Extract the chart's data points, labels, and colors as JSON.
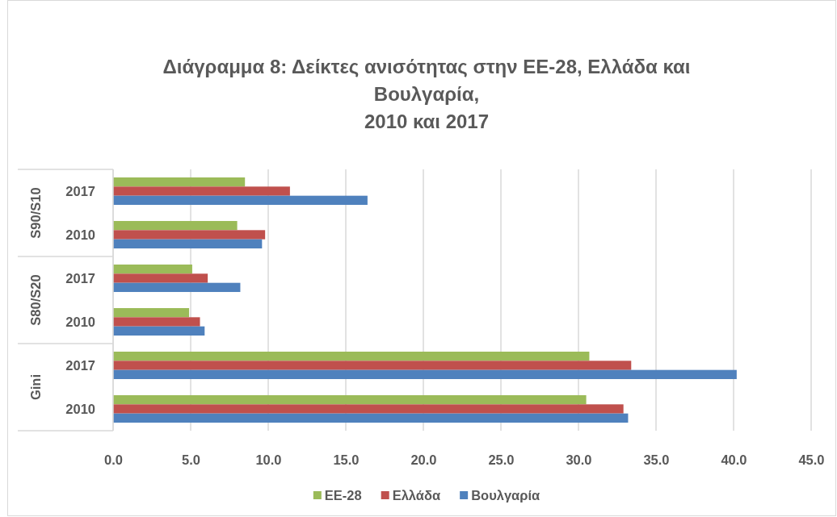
{
  "chart_data": {
    "type": "bar",
    "orientation": "horizontal",
    "title": "Διάγραμμα 8: Δείκτες ανισότητας στην ΕΕ-28, Ελλάδα και Βουλγαρία,\n2010 και 2017",
    "categories": [
      "2017",
      "2010",
      "2017",
      "2010",
      "2017",
      "2010"
    ],
    "annotations": [
      "S90/S10",
      "S80/S20",
      "Gini"
    ],
    "series": [
      {
        "name": "ΕΕ-28",
        "color": "#9bbb59",
        "values": [
          8.5,
          8.0,
          5.1,
          4.9,
          30.7,
          30.5
        ]
      },
      {
        "name": "Ελλάδα",
        "color": "#c0504d",
        "values": [
          11.4,
          9.8,
          6.1,
          5.6,
          33.4,
          32.9
        ]
      },
      {
        "name": "Βουλγαρία",
        "color": "#4f81bd",
        "values": [
          16.4,
          9.6,
          8.2,
          5.9,
          40.2,
          33.2
        ]
      }
    ],
    "xlim": [
      0,
      45
    ],
    "xticks": [
      {
        "value": 0,
        "label": "0.0"
      },
      {
        "value": 5,
        "label": "5.0"
      },
      {
        "value": 10,
        "label": "10.0"
      },
      {
        "value": 15,
        "label": "15.0"
      },
      {
        "value": 20,
        "label": "20.0"
      },
      {
        "value": 25,
        "label": "25.0"
      },
      {
        "value": 30,
        "label": "30.0"
      },
      {
        "value": 35,
        "label": "35.0"
      },
      {
        "value": 40,
        "label": "40.0"
      },
      {
        "value": 45,
        "label": "45.0"
      }
    ],
    "grid": "x",
    "legend": "bottom"
  }
}
